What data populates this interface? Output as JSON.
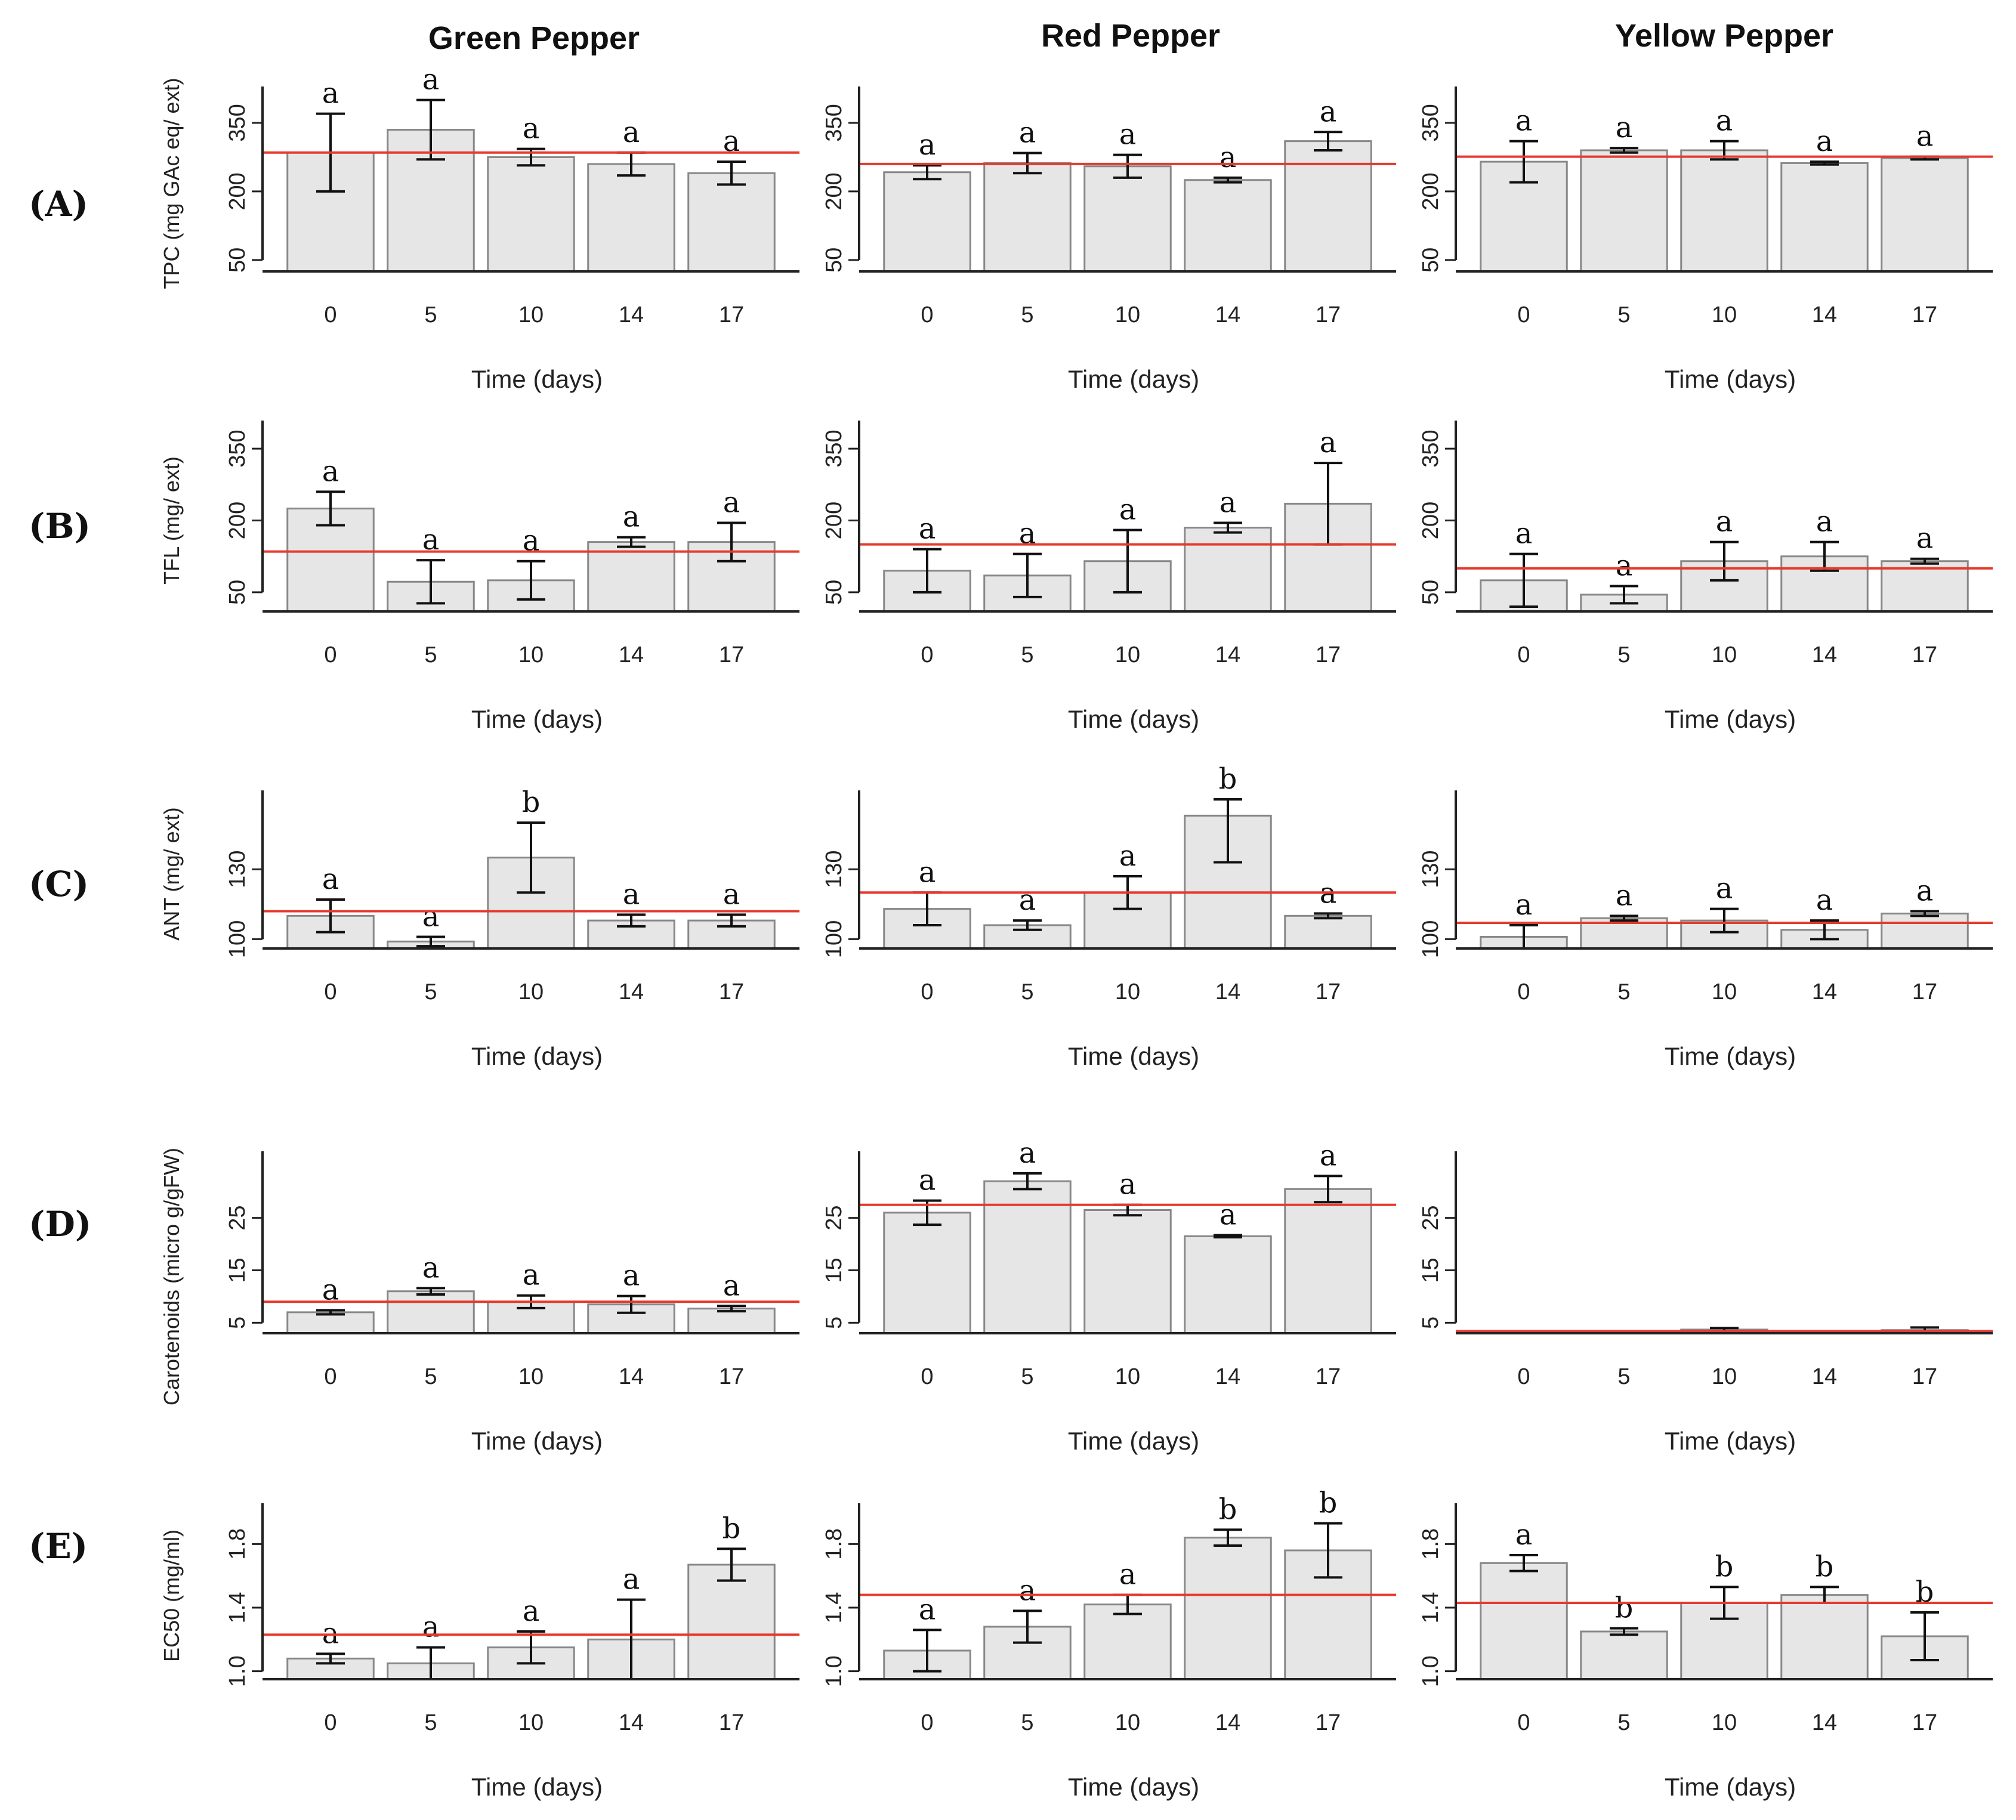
{
  "figure": {
    "column_titles": [
      "Green Pepper",
      "Red Pepper",
      "Yellow Pepper"
    ],
    "row_labels": [
      "(A)",
      "(B)",
      "(C)",
      "(D)",
      "(E)"
    ],
    "mean_line_color": "#e53a2e",
    "bar_color": "#e6e6e6"
  },
  "chart_data": [
    {
      "id": "A-green",
      "type": "bar",
      "row": 0,
      "col": 0,
      "title": "Green Pepper",
      "xlabel": "Time (days)",
      "ylabel": "TPC (mg GAc eq/ ext)",
      "categories": [
        "0",
        "5",
        "10",
        "14",
        "17"
      ],
      "values": [
        285,
        335,
        275,
        260,
        240
      ],
      "errors": [
        85,
        65,
        18,
        25,
        25
      ],
      "letters": [
        "a",
        "a",
        "a",
        "a",
        "a"
      ],
      "mean_line": 285,
      "ylim": [
        25,
        410
      ],
      "yticks": [
        50,
        200,
        350
      ]
    },
    {
      "id": "A-red",
      "type": "bar",
      "row": 0,
      "col": 1,
      "title": "Red Pepper",
      "xlabel": "Time (days)",
      "ylabel": "",
      "categories": [
        "0",
        "5",
        "10",
        "14",
        "17"
      ],
      "values": [
        242,
        262,
        255,
        225,
        310
      ],
      "errors": [
        15,
        22,
        25,
        5,
        20
      ],
      "letters": [
        "a",
        "a",
        "a",
        "a",
        "a"
      ],
      "mean_line": 260,
      "ylim": [
        25,
        410
      ],
      "yticks": [
        50,
        200,
        350
      ]
    },
    {
      "id": "A-yellow",
      "type": "bar",
      "row": 0,
      "col": 2,
      "title": "Yellow Pepper",
      "xlabel": "Time (days)",
      "ylabel": "",
      "categories": [
        "0",
        "5",
        "10",
        "14",
        "17"
      ],
      "values": [
        265,
        290,
        290,
        262,
        273
      ],
      "errors": [
        45,
        5,
        20,
        3,
        3
      ],
      "letters": [
        "a",
        "a",
        "a",
        "a",
        "a"
      ],
      "mean_line": 276,
      "ylim": [
        25,
        410
      ],
      "yticks": [
        50,
        200,
        350
      ]
    },
    {
      "id": "B-green",
      "type": "bar",
      "row": 1,
      "col": 0,
      "title": "",
      "xlabel": "Time (days)",
      "ylabel": "TFL (mg/ ext)",
      "categories": [
        "0",
        "5",
        "10",
        "14",
        "17"
      ],
      "values": [
        225,
        72,
        75,
        155,
        155
      ],
      "errors": [
        35,
        45,
        40,
        10,
        40
      ],
      "letters": [
        "a",
        "a",
        "a",
        "a",
        "a"
      ],
      "mean_line": 135,
      "ylim": [
        10,
        390
      ],
      "yticks": [
        50,
        200,
        350
      ]
    },
    {
      "id": "B-red",
      "type": "bar",
      "row": 1,
      "col": 1,
      "title": "",
      "xlabel": "Time (days)",
      "ylabel": "",
      "categories": [
        "0",
        "5",
        "10",
        "14",
        "17"
      ],
      "values": [
        95,
        85,
        115,
        185,
        235
      ],
      "errors": [
        45,
        45,
        65,
        10,
        85
      ],
      "letters": [
        "a",
        "a",
        "a",
        "a",
        "a"
      ],
      "mean_line": 150,
      "ylim": [
        10,
        390
      ],
      "yticks": [
        50,
        200,
        350
      ]
    },
    {
      "id": "B-yellow",
      "type": "bar",
      "row": 1,
      "col": 2,
      "title": "",
      "xlabel": "Time (days)",
      "ylabel": "",
      "categories": [
        "0",
        "5",
        "10",
        "14",
        "17"
      ],
      "values": [
        75,
        45,
        115,
        125,
        115
      ],
      "errors": [
        55,
        18,
        40,
        30,
        5
      ],
      "letters": [
        "a",
        "a",
        "a",
        "a",
        "a"
      ],
      "mean_line": 100,
      "ylim": [
        10,
        390
      ],
      "yticks": [
        50,
        200,
        350
      ]
    },
    {
      "id": "C-green",
      "type": "bar",
      "row": 2,
      "col": 0,
      "title": "",
      "xlabel": "Time (days)",
      "ylabel": "ANT (mg/ ext)",
      "categories": [
        "0",
        "5",
        "10",
        "14",
        "17"
      ],
      "values": [
        110,
        99,
        135,
        108,
        108
      ],
      "errors": [
        7,
        2,
        15,
        2.5,
        2.5
      ],
      "letters": [
        "a",
        "a",
        "b",
        "a",
        "a"
      ],
      "mean_line": 112,
      "ylim": [
        96,
        160
      ],
      "yticks": [
        100,
        130
      ]
    },
    {
      "id": "C-red",
      "type": "bar",
      "row": 2,
      "col": 1,
      "title": "",
      "xlabel": "Time (days)",
      "ylabel": "",
      "categories": [
        "0",
        "5",
        "10",
        "14",
        "17"
      ],
      "values": [
        113,
        106,
        120,
        153,
        110
      ],
      "errors": [
        7,
        2,
        7,
        20,
        1
      ],
      "letters": [
        "a",
        "a",
        "a",
        "b",
        "a"
      ],
      "mean_line": 120,
      "ylim": [
        96,
        160
      ],
      "yticks": [
        100,
        130
      ]
    },
    {
      "id": "C-yellow",
      "type": "bar",
      "row": 2,
      "col": 2,
      "title": "",
      "xlabel": "Time (days)",
      "ylabel": "",
      "categories": [
        "0",
        "5",
        "10",
        "14",
        "17"
      ],
      "values": [
        101,
        109,
        108,
        104,
        111
      ],
      "errors": [
        5,
        1,
        5,
        4,
        1
      ],
      "letters": [
        "a",
        "a",
        "a",
        "a",
        "a"
      ],
      "mean_line": 107,
      "ylim": [
        96,
        160
      ],
      "yticks": [
        100,
        130
      ]
    },
    {
      "id": "D-green",
      "type": "bar",
      "row": 3,
      "col": 0,
      "title": "Green Pepper",
      "xlabel": "Time (days)",
      "ylabel": "Carotenoids (micro g/gFW)",
      "categories": [
        "0",
        "5",
        "10",
        "14",
        "17"
      ],
      "values": [
        7,
        11,
        9,
        8.5,
        7.7
      ],
      "errors": [
        0.4,
        0.6,
        1.2,
        1.6,
        0.5
      ],
      "letters": [
        "a",
        "a",
        "a",
        "a",
        "a"
      ],
      "mean_line": 9,
      "ylim": [
        3,
        36
      ],
      "yticks": [
        5,
        15,
        25
      ]
    },
    {
      "id": "D-red",
      "type": "bar",
      "row": 3,
      "col": 1,
      "title": "Red Pepper",
      "xlabel": "Time (days)",
      "ylabel": "",
      "categories": [
        "0",
        "5",
        "10",
        "14",
        "17"
      ],
      "values": [
        26,
        32,
        26.5,
        21.5,
        30.5
      ],
      "errors": [
        2.3,
        1.5,
        1,
        0.2,
        2.5
      ],
      "letters": [
        "a",
        "a",
        "a",
        "a",
        "a"
      ],
      "mean_line": 27.5,
      "ylim": [
        3,
        36
      ],
      "yticks": [
        5,
        15,
        25
      ]
    },
    {
      "id": "D-yellow",
      "type": "bar",
      "row": 3,
      "col": 2,
      "title": "Yellow Pepper",
      "xlabel": "Time (days)",
      "ylabel": "",
      "categories": [
        "0",
        "5",
        "10",
        "14",
        "17"
      ],
      "values": [
        3.1,
        3.2,
        3.7,
        3.1,
        3.6
      ],
      "errors": [
        0.1,
        0.1,
        0.3,
        0.1,
        0.5
      ],
      "letters": [
        "",
        "",
        "",
        "",
        ""
      ],
      "mean_line": 3.4,
      "ylim": [
        3,
        36
      ],
      "yticks": [
        5,
        15,
        25
      ]
    },
    {
      "id": "E-green",
      "type": "bar",
      "row": 4,
      "col": 0,
      "title": "",
      "xlabel": "Time (days)",
      "ylabel": "EC50 (mg/ml)",
      "categories": [
        "0",
        "5",
        "10",
        "14",
        "17"
      ],
      "values": [
        1.08,
        1.05,
        1.15,
        1.2,
        1.67
      ],
      "errors": [
        0.03,
        0.1,
        0.1,
        0.25,
        0.1
      ],
      "letters": [
        "a",
        "a",
        "a",
        "a",
        "b"
      ],
      "mean_line": 1.23,
      "ylim": [
        0.95,
        2.0
      ],
      "yticks": [
        1.0,
        1.4,
        1.8
      ]
    },
    {
      "id": "E-red",
      "type": "bar",
      "row": 4,
      "col": 1,
      "title": "",
      "xlabel": "Time (days)",
      "ylabel": "",
      "categories": [
        "0",
        "5",
        "10",
        "14",
        "17"
      ],
      "values": [
        1.13,
        1.28,
        1.42,
        1.84,
        1.76
      ],
      "errors": [
        0.13,
        0.1,
        0.06,
        0.05,
        0.17
      ],
      "letters": [
        "a",
        "a",
        "a",
        "b",
        "b"
      ],
      "mean_line": 1.48,
      "ylim": [
        0.95,
        2.0
      ],
      "yticks": [
        1.0,
        1.4,
        1.8
      ]
    },
    {
      "id": "E-yellow",
      "type": "bar",
      "row": 4,
      "col": 2,
      "title": "",
      "xlabel": "Time (days)",
      "ylabel": "",
      "categories": [
        "0",
        "5",
        "10",
        "14",
        "17"
      ],
      "values": [
        1.68,
        1.25,
        1.43,
        1.48,
        1.22
      ],
      "errors": [
        0.05,
        0.02,
        0.1,
        0.05,
        0.15
      ],
      "letters": [
        "a",
        "b",
        "b",
        "b",
        "b"
      ],
      "mean_line": 1.43,
      "ylim": [
        0.95,
        2.0
      ],
      "yticks": [
        1.0,
        1.4,
        1.8
      ]
    }
  ]
}
